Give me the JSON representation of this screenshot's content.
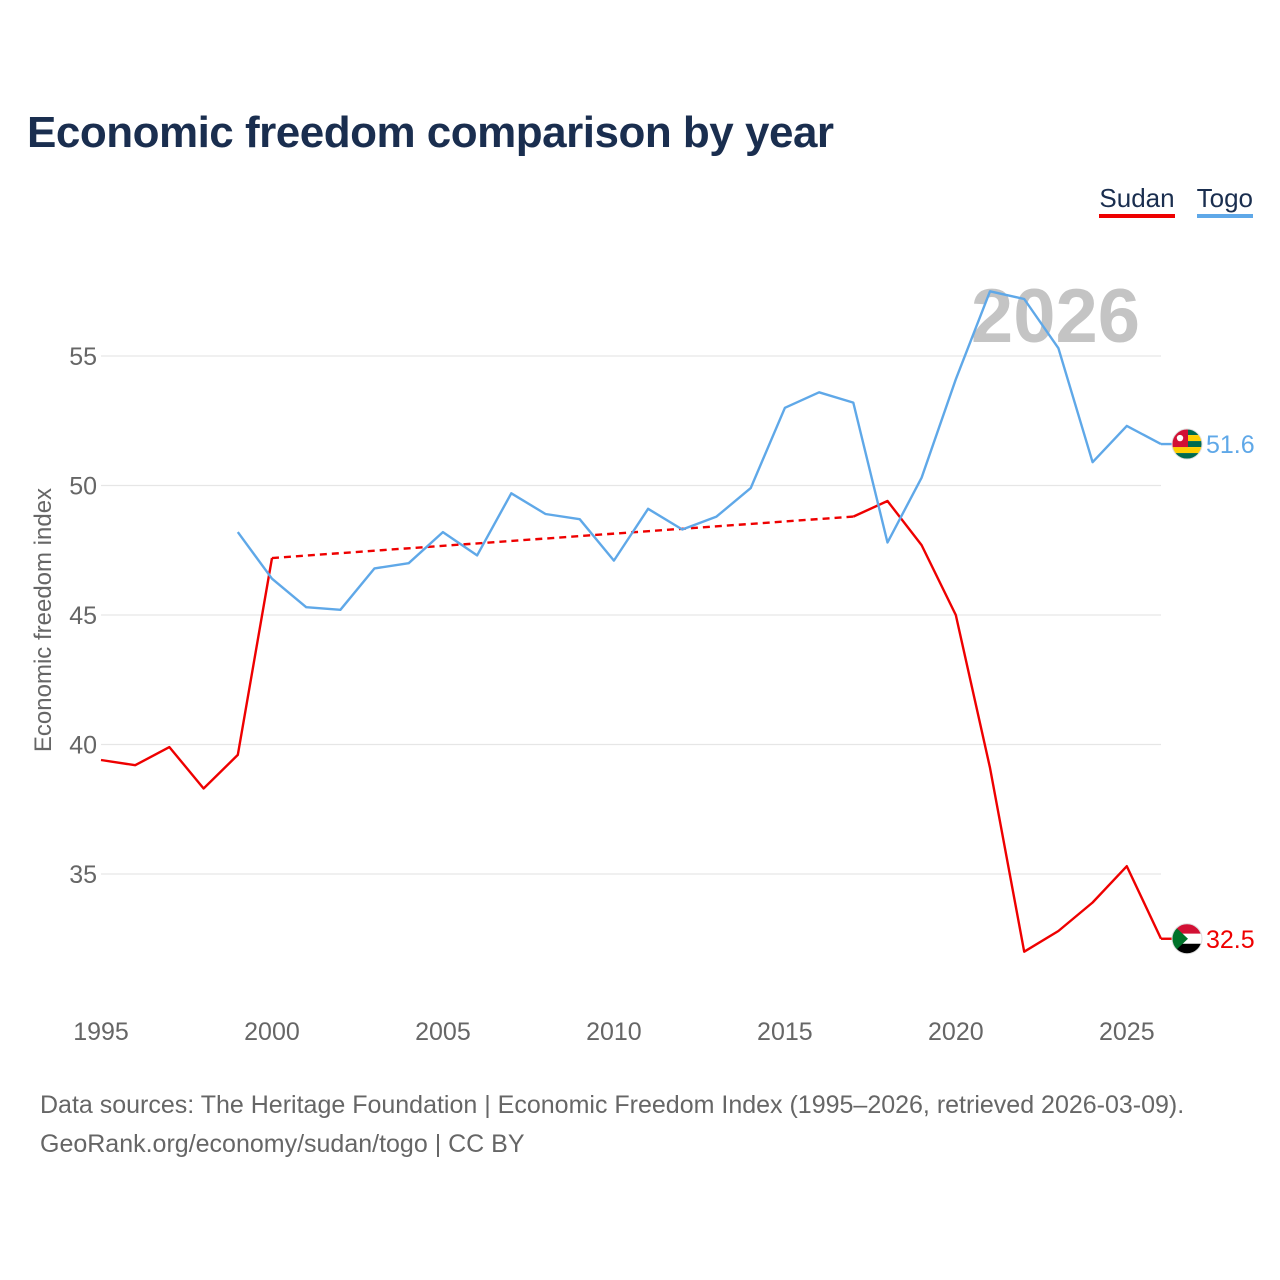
{
  "title": "Economic freedom comparison by year",
  "legend": [
    {
      "label": "Sudan",
      "color": "#ee0000"
    },
    {
      "label": "Togo",
      "color": "#5fa8e8"
    }
  ],
  "year_watermark": "2026",
  "source": {
    "line1": "Data sources: The Heritage Foundation | Economic Freedom Index (1995–2026, retrieved 2026-03-09).",
    "line2": "GeoRank.org/economy/sudan/togo | CC BY"
  },
  "chart_data": {
    "type": "line",
    "title": "Economic freedom comparison by year",
    "xlabel": "",
    "ylabel": "Economic freedom index",
    "xlim": [
      1995,
      2026
    ],
    "ylim": [
      30,
      58
    ],
    "x_ticks": [
      1995,
      2000,
      2005,
      2010,
      2015,
      2020,
      2025
    ],
    "y_ticks": [
      35,
      40,
      45,
      50,
      55
    ],
    "grid": true,
    "legend_position": "top-right",
    "series": [
      {
        "name": "Sudan",
        "color": "#ee0000",
        "points": [
          [
            1995,
            39.4
          ],
          [
            1996,
            39.2
          ],
          [
            1997,
            39.9
          ],
          [
            1998,
            38.3
          ],
          [
            1999,
            39.6
          ],
          [
            2000,
            47.2
          ],
          [
            2017,
            48.8
          ],
          [
            2018,
            49.4
          ],
          [
            2019,
            47.7
          ],
          [
            2020,
            45.0
          ],
          [
            2021,
            39.1
          ],
          [
            2022,
            32.0
          ],
          [
            2023,
            32.8
          ],
          [
            2024,
            33.9
          ],
          [
            2025,
            35.3
          ],
          [
            2026,
            32.5
          ]
        ],
        "dashed_gap": [
          2000,
          2017
        ],
        "last_value": "32.5"
      },
      {
        "name": "Togo",
        "color": "#5fa8e8",
        "points": [
          [
            1999,
            48.2
          ],
          [
            2000,
            46.4
          ],
          [
            2001,
            45.3
          ],
          [
            2002,
            45.2
          ],
          [
            2003,
            46.8
          ],
          [
            2004,
            47.0
          ],
          [
            2005,
            48.2
          ],
          [
            2006,
            47.3
          ],
          [
            2007,
            49.7
          ],
          [
            2008,
            48.9
          ],
          [
            2009,
            48.7
          ],
          [
            2010,
            47.1
          ],
          [
            2011,
            49.1
          ],
          [
            2012,
            48.3
          ],
          [
            2013,
            48.8
          ],
          [
            2014,
            49.9
          ],
          [
            2015,
            53.0
          ],
          [
            2016,
            53.6
          ],
          [
            2017,
            53.2
          ],
          [
            2018,
            47.8
          ],
          [
            2019,
            50.3
          ],
          [
            2020,
            54.1
          ],
          [
            2021,
            57.5
          ],
          [
            2022,
            57.2
          ],
          [
            2023,
            55.3
          ],
          [
            2024,
            50.9
          ],
          [
            2025,
            52.3
          ],
          [
            2026,
            51.6
          ]
        ],
        "last_value": "51.6"
      }
    ]
  }
}
